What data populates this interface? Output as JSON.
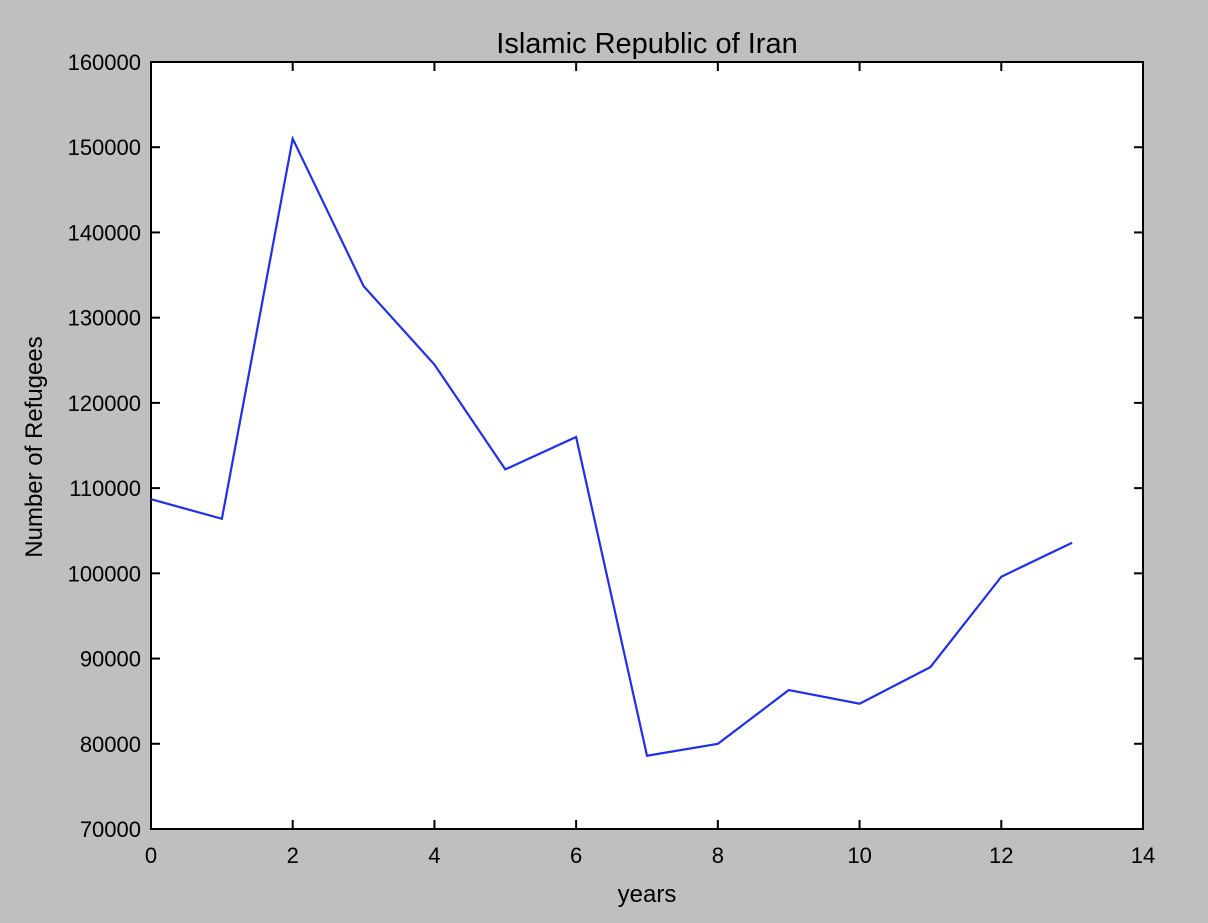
{
  "chart_data": {
    "type": "line",
    "title": "Islamic Republic of Iran",
    "xlabel": "years",
    "ylabel": "Number of Refugees",
    "xlim": [
      0,
      14
    ],
    "ylim": [
      70000,
      160000
    ],
    "xticks": [
      0,
      2,
      4,
      6,
      8,
      10,
      12,
      14
    ],
    "yticks": [
      70000,
      80000,
      90000,
      100000,
      110000,
      120000,
      130000,
      140000,
      150000,
      160000
    ],
    "xtick_labels": [
      "0",
      "2",
      "4",
      "6",
      "8",
      "10",
      "12",
      "14"
    ],
    "ytick_labels": [
      "70000",
      "80000",
      "90000",
      "100000",
      "110000",
      "120000",
      "130000",
      "140000",
      "150000",
      "160000"
    ],
    "grid": false,
    "series": [
      {
        "color": "#1f2ff0",
        "x": [
          0,
          1,
          2,
          3,
          4,
          5,
          6,
          7,
          8,
          9,
          10,
          11,
          12,
          13
        ],
        "y": [
          108700,
          106400,
          151000,
          133700,
          124500,
          112200,
          116000,
          78600,
          80000,
          86300,
          84700,
          89000,
          99600,
          103600
        ]
      }
    ]
  }
}
